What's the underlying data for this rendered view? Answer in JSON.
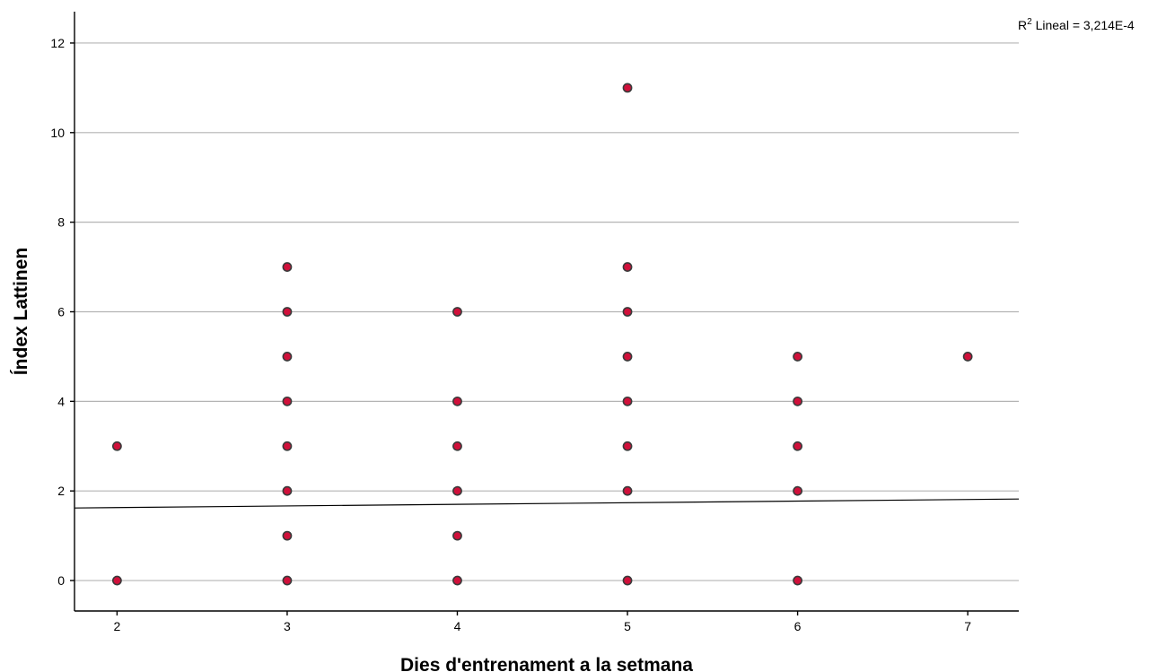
{
  "chart_data": {
    "type": "scatter",
    "xlabel": "Dies d'entrenament a la setmana",
    "ylabel": "Índex Lattinen",
    "xlim": [
      1.75,
      7.3
    ],
    "ylim": [
      -0.68,
      12.7
    ],
    "x_ticks": [
      2,
      3,
      4,
      5,
      6,
      7
    ],
    "y_ticks": [
      0,
      2,
      4,
      6,
      8,
      10,
      12
    ],
    "grid": "horizontal",
    "colors": {
      "point_fill": "#d0103a",
      "point_stroke": "#3a3a3a",
      "grid": "#b4b4b4",
      "fit_line": "#000000"
    },
    "annotation": {
      "label_base": "R",
      "superscript": "2",
      "text": " Lineal = 3,214E-4"
    },
    "fit_line": {
      "x": [
        1.75,
        7.3
      ],
      "y": [
        1.62,
        1.82
      ]
    },
    "points": [
      {
        "x": 2,
        "y": 3
      },
      {
        "x": 2,
        "y": 0
      },
      {
        "x": 3,
        "y": 7
      },
      {
        "x": 3,
        "y": 6
      },
      {
        "x": 3,
        "y": 5
      },
      {
        "x": 3,
        "y": 4
      },
      {
        "x": 3,
        "y": 3
      },
      {
        "x": 3,
        "y": 2
      },
      {
        "x": 3,
        "y": 1
      },
      {
        "x": 3,
        "y": 0
      },
      {
        "x": 4,
        "y": 6
      },
      {
        "x": 4,
        "y": 4
      },
      {
        "x": 4,
        "y": 3
      },
      {
        "x": 4,
        "y": 2
      },
      {
        "x": 4,
        "y": 1
      },
      {
        "x": 4,
        "y": 0
      },
      {
        "x": 5,
        "y": 11
      },
      {
        "x": 5,
        "y": 7
      },
      {
        "x": 5,
        "y": 6
      },
      {
        "x": 5,
        "y": 5
      },
      {
        "x": 5,
        "y": 4
      },
      {
        "x": 5,
        "y": 3
      },
      {
        "x": 5,
        "y": 2
      },
      {
        "x": 5,
        "y": 0
      },
      {
        "x": 6,
        "y": 5
      },
      {
        "x": 6,
        "y": 4
      },
      {
        "x": 6,
        "y": 3
      },
      {
        "x": 6,
        "y": 2
      },
      {
        "x": 6,
        "y": 0
      },
      {
        "x": 7,
        "y": 5
      }
    ]
  }
}
